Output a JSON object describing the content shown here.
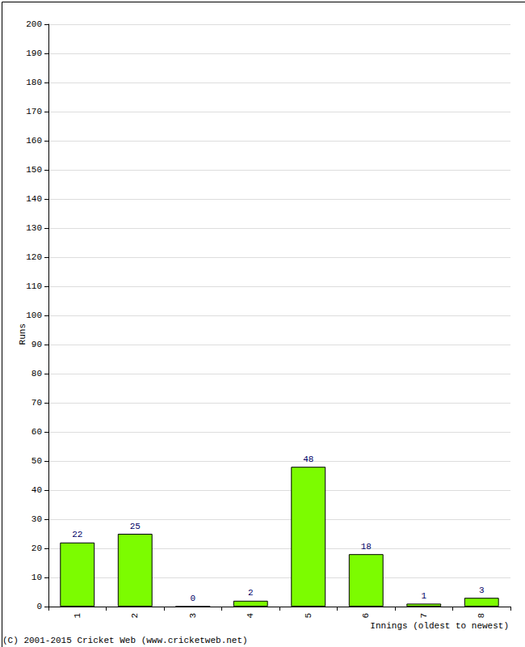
{
  "chart_data": {
    "type": "bar",
    "categories": [
      "1",
      "2",
      "3",
      "4",
      "5",
      "6",
      "7",
      "8"
    ],
    "values": [
      22,
      25,
      0,
      2,
      48,
      18,
      1,
      3
    ],
    "color": "#7cfc00",
    "y_label": "Runs",
    "x_label": "Innings (oldest to newest)",
    "annotation": "(C) 2001-2015 Cricket Web (www.cricketweb.net)",
    "ylim": [
      0,
      200
    ],
    "yticks": [
      0,
      10,
      20,
      30,
      40,
      50,
      60,
      70,
      80,
      90,
      100,
      110,
      120,
      130,
      140,
      150,
      160,
      170,
      180,
      190,
      200
    ],
    "grid": true,
    "data_labels": true
  }
}
